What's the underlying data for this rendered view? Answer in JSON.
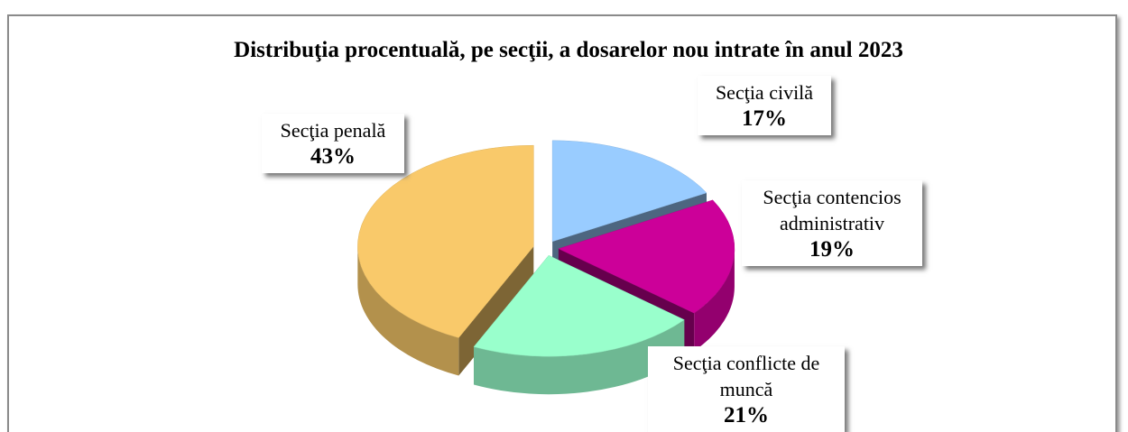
{
  "chart_data": {
    "type": "pie",
    "title": "Distribuţia procentuală, pe secţii, a dosarelor nou intrate în anul 2023",
    "categories": [
      "Secţia civilă",
      "Secţia contencios administrativ",
      "Secţia conflicte de muncă",
      "Secţia penală"
    ],
    "values": [
      17,
      19,
      21,
      43
    ],
    "value_labels": [
      "17%",
      "19%",
      "21%",
      "43%"
    ],
    "colors": [
      "#99ccff",
      "#cc0099",
      "#99ffcc",
      "#f9c96a"
    ]
  }
}
